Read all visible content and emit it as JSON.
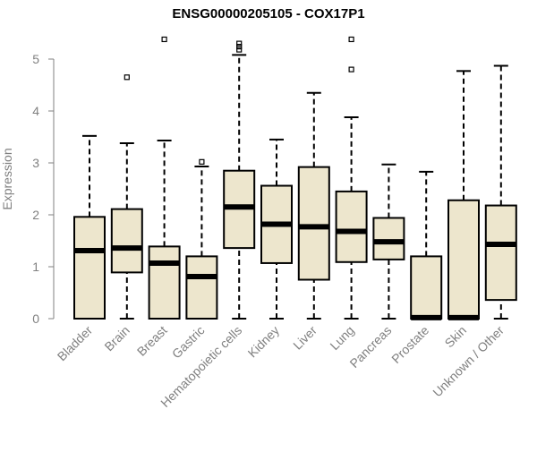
{
  "chart_data": {
    "type": "box",
    "title": "ENSG00000205105 - COX17P1",
    "xlabel": "",
    "ylabel": "Expression",
    "ylim": [
      0,
      5.5
    ],
    "yticks": [
      0,
      1,
      2,
      3,
      4,
      5
    ],
    "ytick_labels": [
      "0",
      "1",
      "2",
      "3",
      "4",
      "5"
    ],
    "grid": false,
    "legend": "none",
    "box_fill": "#ede6cd",
    "box_stroke": "#000000",
    "axis_color": "#808080",
    "categories": [
      "Bladder",
      "Brain",
      "Breast",
      "Gastric",
      "Hematopoietic cells",
      "Kidney",
      "Liver",
      "Lung",
      "Pancreas",
      "Prostate",
      "Skin",
      "Unknown / Other"
    ],
    "series": [
      {
        "boxes": [
          {
            "category": "Bladder",
            "min": 0,
            "q1": 0,
            "median": 1.31,
            "q3": 1.96,
            "max": 3.52,
            "outliers": []
          },
          {
            "category": "Brain",
            "min": 0,
            "q1": 0.89,
            "median": 1.36,
            "q3": 2.11,
            "max": 3.38,
            "outliers": [
              4.65
            ]
          },
          {
            "category": "Breast",
            "min": 0,
            "q1": 0,
            "median": 1.07,
            "q3": 1.39,
            "max": 3.43,
            "outliers": [
              5.38
            ]
          },
          {
            "category": "Gastric",
            "min": 0,
            "q1": 0,
            "median": 0.81,
            "q3": 1.2,
            "max": 2.93,
            "outliers": [
              3.02
            ]
          },
          {
            "category": "Hematopoietic cells",
            "min": 0,
            "q1": 1.36,
            "median": 2.15,
            "q3": 2.85,
            "max": 5.08,
            "outliers": [
              5.18,
              5.24,
              5.3
            ]
          },
          {
            "category": "Kidney",
            "min": 0,
            "q1": 1.07,
            "median": 1.82,
            "q3": 2.56,
            "max": 3.45,
            "outliers": []
          },
          {
            "category": "Liver",
            "min": 0,
            "q1": 0.75,
            "median": 1.77,
            "q3": 2.92,
            "max": 4.35,
            "outliers": []
          },
          {
            "category": "Lung",
            "min": 0,
            "q1": 1.09,
            "median": 1.68,
            "q3": 2.45,
            "max": 3.88,
            "outliers": [
              4.8,
              5.38
            ]
          },
          {
            "category": "Pancreas",
            "min": 0,
            "q1": 1.14,
            "median": 1.48,
            "q3": 1.94,
            "max": 2.97,
            "outliers": []
          },
          {
            "category": "Prostate",
            "min": 0,
            "q1": 0,
            "median": 0.02,
            "q3": 1.2,
            "max": 2.83,
            "outliers": []
          },
          {
            "category": "Skin",
            "min": 0,
            "q1": 0,
            "median": 0.02,
            "q3": 2.28,
            "max": 4.77,
            "outliers": []
          },
          {
            "category": "Unknown / Other",
            "min": 0,
            "q1": 0.36,
            "median": 1.43,
            "q3": 2.18,
            "max": 4.87,
            "outliers": []
          }
        ]
      }
    ]
  }
}
